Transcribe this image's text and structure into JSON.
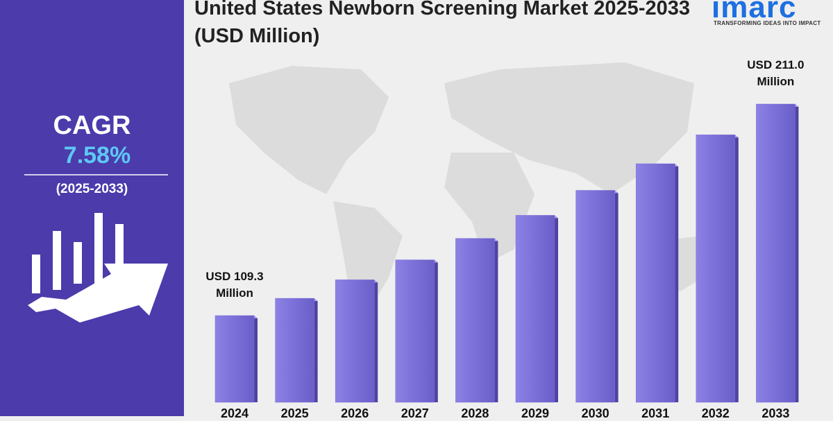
{
  "chart_data": {
    "type": "bar",
    "title": "United States Newborn Screening Market 2025-2033 (USD Million)",
    "categories": [
      "2024",
      "2025",
      "2026",
      "2027",
      "2028",
      "2029",
      "2030",
      "2031",
      "2032",
      "2033"
    ],
    "values": [
      109.3,
      117.6,
      126.5,
      136.1,
      146.4,
      157.5,
      169.5,
      182.3,
      196.2,
      211.0
    ],
    "value_labels": [
      "USD 109.3 Million",
      null,
      null,
      null,
      null,
      null,
      null,
      null,
      null,
      "USD 211.0 Million"
    ],
    "color": "#7b6fd8"
  },
  "sidebar": {
    "cagr_label": "CAGR",
    "cagr_value": "7.58%",
    "cagr_period": "(2025-2033)"
  },
  "logo": {
    "name": "imarc",
    "tagline": "TRANSFORMING IDEAS INTO IMPACT"
  }
}
